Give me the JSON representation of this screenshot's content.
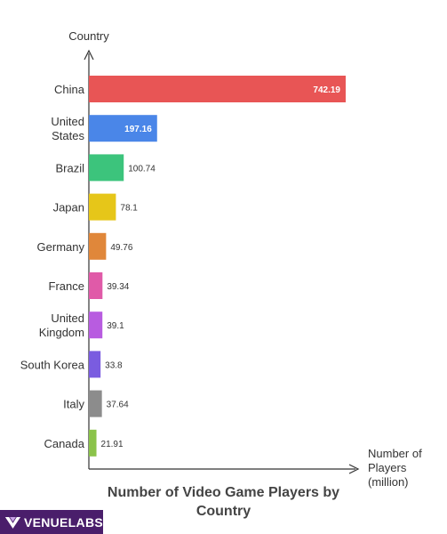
{
  "chart_data": {
    "type": "bar",
    "orientation": "horizontal",
    "title": "Number of Video Game Players by Country",
    "ylabel": "Country",
    "xlabel": "Number of Players (million)",
    "categories": [
      "China",
      "United States",
      "Brazil",
      "Japan",
      "Germany",
      "France",
      "United Kingdom",
      "South Korea",
      "Italy",
      "Canada"
    ],
    "values": [
      742.19,
      197.16,
      100.74,
      78.1,
      49.76,
      39.34,
      39.1,
      33.8,
      37.64,
      21.91
    ],
    "value_labels": [
      "742.19",
      "197.16",
      "100.74",
      "78.1",
      "49.76",
      "39.34",
      "39.1",
      "33.8",
      "37.64",
      "21.91"
    ],
    "colors": [
      "#e85555",
      "#4a86e8",
      "#3cc47c",
      "#e6c619",
      "#e0873a",
      "#e05aa8",
      "#b85ce0",
      "#7a5ce0",
      "#8c8c8c",
      "#8bc34a"
    ],
    "xlim": [
      0,
      742.19
    ],
    "grid": false,
    "legend": "none"
  },
  "branding": {
    "logo_text": "VENUELABS",
    "logo_bg": "#4a1e6b"
  }
}
